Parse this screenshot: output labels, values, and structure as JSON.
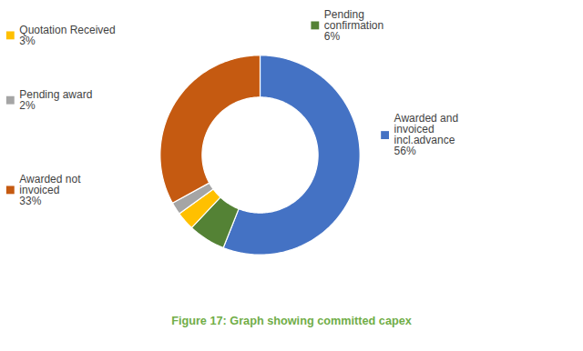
{
  "chart_data": {
    "type": "pie",
    "caption": "Figure 17: Graph showing committed capex",
    "categories": [
      "Awarded and\ninvoiced\nincl.advance",
      "Pending\nconfirmation",
      "Quotation Received",
      "Pending award",
      "Awarded not\ninvoiced"
    ],
    "values": [
      56,
      6,
      3,
      2,
      33
    ],
    "value_labels": [
      "56%",
      "6%",
      "3%",
      "2%",
      "33%"
    ],
    "colors": [
      "#4472C4",
      "#548235",
      "#FFC000",
      "#A5A5A5",
      "#C55A11"
    ],
    "data_labels": true
  }
}
